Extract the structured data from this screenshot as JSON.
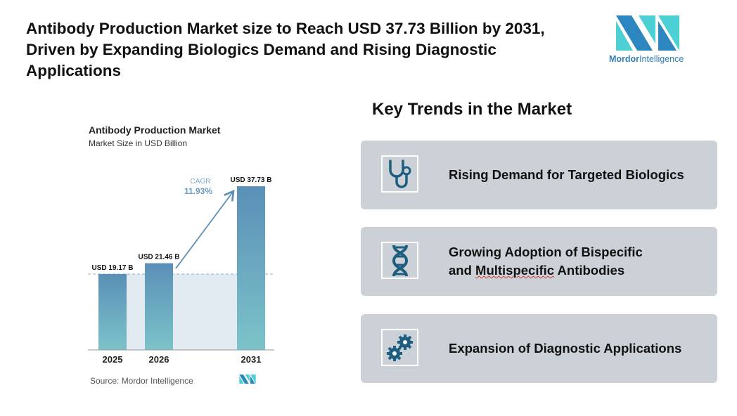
{
  "title": "Antibody Production Market size to Reach USD 37.73 Billion by 2031, Driven by Expanding Biologics Demand and Rising Diagnostic Applications",
  "logo": {
    "brand": "Mordor",
    "brand2": "Intelligence",
    "colors": [
      "#2e86c1",
      "#4dd0d4"
    ]
  },
  "chart_data": {
    "type": "bar",
    "title": "Antibody Production Market",
    "subtitle": "Market Size in USD Billion",
    "categories": [
      "2025",
      "2026",
      "2031"
    ],
    "values": [
      19.17,
      21.46,
      37.73
    ],
    "data_labels": [
      "USD 19.17 B",
      "USD 21.46 B",
      "USD 37.73 B"
    ],
    "annotation": {
      "label": "CAGR",
      "value": "11.93%"
    },
    "colors": {
      "bar_top": "#5a8fb7",
      "bar_bottom": "#7cc3c9",
      "shade": "#e3ebf2",
      "arrow": "#5a8fb7"
    }
  },
  "source": "Source: Mordor Intelligence",
  "trends": {
    "title": "Key Trends in the Market",
    "items": [
      {
        "icon": "stethoscope",
        "label": "Rising Demand for Targeted Biologics"
      },
      {
        "icon": "dna",
        "label_line1": "Growing Adoption of Bispecific",
        "label_line2a": "and ",
        "label_line2b": "Multispecific",
        "label_line2c": " Antibodies"
      },
      {
        "icon": "gears",
        "label": "Expansion of Diagnostic Applications"
      }
    ]
  }
}
